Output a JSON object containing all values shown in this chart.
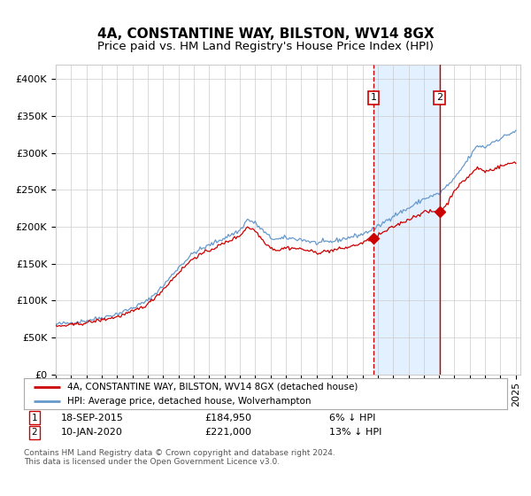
{
  "title": "4A, CONSTANTINE WAY, BILSTON, WV14 8GX",
  "subtitle": "Price paid vs. HM Land Registry's House Price Index (HPI)",
  "legend_line1": "4A, CONSTANTINE WAY, BILSTON, WV14 8GX (detached house)",
  "legend_line2": "HPI: Average price, detached house, Wolverhampton",
  "marker1_date_label": "1",
  "marker1_date": "18-SEP-2015",
  "marker1_price": 184950,
  "marker1_year": 2015.72,
  "marker2_date_label": "2",
  "marker2_date": "10-JAN-2020",
  "marker2_price": 221000,
  "marker2_year": 2020.03,
  "red_color": "#cc0000",
  "blue_color": "#6699cc",
  "shade_color": "#ddeeff",
  "bg_color": "#ffffff",
  "grid_color": "#cccccc",
  "ylim": [
    0,
    420000
  ],
  "yticks": [
    0,
    50000,
    100000,
    150000,
    200000,
    250000,
    300000,
    350000,
    400000
  ],
  "title_fontsize": 11,
  "subtitle_fontsize": 9.5,
  "tick_fontsize": 8,
  "hpi_anchors_x": [
    1995.0,
    1996.0,
    1997.0,
    1998.0,
    1999.0,
    2000.0,
    2001.0,
    2002.0,
    2003.0,
    2004.0,
    2005.0,
    2006.0,
    2007.0,
    2007.5,
    2008.0,
    2008.5,
    2009.0,
    2009.5,
    2010.0,
    2011.0,
    2012.0,
    2013.0,
    2014.0,
    2015.0,
    2016.0,
    2017.0,
    2018.0,
    2019.0,
    2020.0,
    2021.0,
    2022.0,
    2022.5,
    2023.0,
    2023.5,
    2024.0,
    2024.5,
    2025.0
  ],
  "hpi_anchors_y": [
    68000,
    70000,
    73000,
    77000,
    82000,
    90000,
    100000,
    120000,
    145000,
    165000,
    175000,
    185000,
    195000,
    210000,
    205000,
    195000,
    185000,
    183000,
    185000,
    183000,
    178000,
    180000,
    185000,
    190000,
    200000,
    215000,
    225000,
    238000,
    245000,
    265000,
    295000,
    310000,
    308000,
    315000,
    320000,
    325000,
    330000
  ],
  "red_anchors_x": [
    1995.0,
    1996.0,
    1997.0,
    1998.0,
    1999.0,
    2000.0,
    2001.0,
    2002.0,
    2003.0,
    2004.0,
    2005.0,
    2006.0,
    2007.0,
    2007.5,
    2008.0,
    2008.5,
    2009.0,
    2009.5,
    2010.0,
    2011.0,
    2012.0,
    2013.0,
    2014.0,
    2015.0,
    2015.72,
    2016.0,
    2017.0,
    2018.0,
    2019.0,
    2020.03,
    2020.5,
    2021.0,
    2022.0,
    2022.5,
    2023.0,
    2023.5,
    2024.0,
    2024.5,
    2025.0
  ],
  "red_anchors_y": [
    65000,
    67000,
    70000,
    74000,
    78000,
    85000,
    95000,
    115000,
    138000,
    158000,
    168000,
    178000,
    188000,
    200000,
    195000,
    182000,
    172000,
    168000,
    172000,
    170000,
    165000,
    168000,
    172000,
    178000,
    184950,
    188000,
    200000,
    210000,
    220000,
    221000,
    230000,
    250000,
    270000,
    280000,
    275000,
    278000,
    282000,
    285000,
    288000
  ]
}
